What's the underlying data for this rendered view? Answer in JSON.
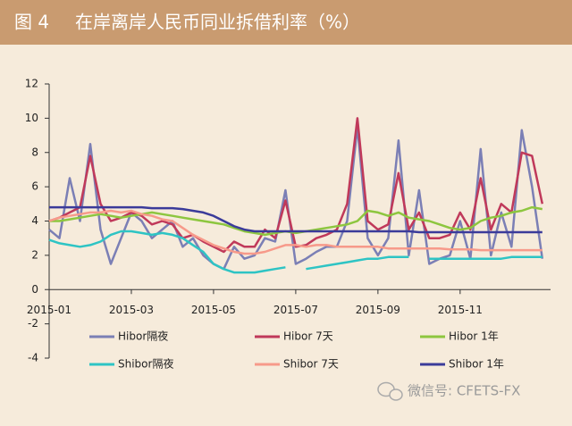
{
  "chart_data": {
    "type": "line",
    "figure_label": "图 4",
    "title": "在岸离岸人民币同业拆借利率（%）",
    "watermark": "微信号: CFETS-FX",
    "x": [
      0,
      0.25,
      0.5,
      0.75,
      1,
      1.25,
      1.5,
      1.75,
      2,
      2.25,
      2.5,
      2.75,
      3,
      3.25,
      3.5,
      3.75,
      4,
      4.25,
      4.5,
      4.75,
      5,
      5.25,
      5.5,
      5.75,
      6,
      6.25,
      6.5,
      6.75,
      7,
      7.25,
      7.5,
      7.75,
      8,
      8.25,
      8.5,
      8.75,
      9,
      9.25,
      9.5,
      9.75,
      10,
      10.25,
      10.5,
      10.75,
      11,
      11.25,
      11.5,
      11.75,
      12
    ],
    "xlim": [
      0,
      12.2
    ],
    "xticks": [
      {
        "value": 0,
        "label": "2015-01"
      },
      {
        "value": 2,
        "label": "2015-03"
      },
      {
        "value": 4,
        "label": "2015-05"
      },
      {
        "value": 6,
        "label": "2015-07"
      },
      {
        "value": 8,
        "label": "2015-09"
      },
      {
        "value": 10,
        "label": "2015-11"
      }
    ],
    "ylim": [
      -4,
      12
    ],
    "yticks": [
      -4,
      -2,
      0,
      2,
      4,
      6,
      8,
      10,
      12
    ],
    "legend": "bottom",
    "series": [
      {
        "name": "Hibor隔夜",
        "color": "#7b7fb5",
        "values": [
          3.5,
          3.0,
          6.5,
          4.0,
          8.5,
          3.5,
          1.5,
          3.0,
          4.5,
          4.0,
          3.0,
          3.5,
          4.0,
          2.5,
          3.0,
          2.0,
          1.5,
          1.2,
          2.5,
          1.8,
          2.0,
          3.0,
          2.8,
          5.8,
          1.5,
          1.8,
          2.2,
          2.5,
          2.5,
          4.0,
          9.5,
          3.0,
          2.0,
          3.0,
          8.7,
          2.0,
          5.8,
          1.5,
          1.8,
          2.0,
          4.0,
          1.8,
          8.2,
          2.0,
          4.5,
          2.5,
          9.3,
          6.0,
          1.8
        ]
      },
      {
        "name": "Hibor 7天",
        "color": "#c0395a",
        "values": [
          4.0,
          4.2,
          4.5,
          4.8,
          7.8,
          5.0,
          4.0,
          4.2,
          4.5,
          4.3,
          3.8,
          4.0,
          3.8,
          3.0,
          3.2,
          2.8,
          2.5,
          2.2,
          2.8,
          2.5,
          2.5,
          3.5,
          3.0,
          5.2,
          2.5,
          2.6,
          3.0,
          3.2,
          3.5,
          5.0,
          10.0,
          4.0,
          3.5,
          3.8,
          6.8,
          3.5,
          4.5,
          3.0,
          3.0,
          3.2,
          4.5,
          3.5,
          6.5,
          3.5,
          5.0,
          4.5,
          8.0,
          7.8,
          5.0
        ]
      },
      {
        "name": "Hibor 1年",
        "color": "#8dc63f",
        "values": [
          4.0,
          4.0,
          4.1,
          4.2,
          4.3,
          4.4,
          4.3,
          4.2,
          4.3,
          4.4,
          4.5,
          4.4,
          4.3,
          4.2,
          4.1,
          4.0,
          3.9,
          3.8,
          3.6,
          3.4,
          3.3,
          3.2,
          3.3,
          3.4,
          3.3,
          3.4,
          3.5,
          3.6,
          3.7,
          3.8,
          4.0,
          4.6,
          4.5,
          4.3,
          4.5,
          4.2,
          4.1,
          4.0,
          3.8,
          3.6,
          3.5,
          3.6,
          4.0,
          4.2,
          4.3,
          4.5,
          4.6,
          4.8,
          4.7
        ]
      },
      {
        "name": "Shibor隔夜",
        "color": "#2ec4c4",
        "values": [
          2.9,
          2.7,
          2.6,
          2.5,
          2.6,
          2.8,
          3.2,
          3.4,
          3.4,
          3.3,
          3.2,
          3.3,
          3.2,
          3.0,
          2.6,
          2.2,
          1.5,
          1.2,
          1.0,
          1.0,
          1.0,
          1.1,
          1.2,
          1.3,
          null,
          1.2,
          1.3,
          1.4,
          1.5,
          1.6,
          1.7,
          1.8,
          1.8,
          1.9,
          1.9,
          1.9,
          null,
          1.8,
          1.8,
          1.8,
          1.8,
          1.8,
          1.8,
          1.8,
          1.8,
          1.9,
          1.9,
          1.9,
          1.9
        ]
      },
      {
        "name": "Shibor 7天",
        "color": "#f79a8a",
        "values": [
          4.0,
          4.2,
          4.3,
          4.4,
          4.5,
          4.5,
          4.6,
          4.5,
          4.6,
          4.4,
          4.3,
          4.1,
          4.0,
          3.6,
          3.2,
          2.9,
          2.6,
          2.4,
          2.2,
          2.1,
          2.1,
          2.2,
          2.4,
          2.6,
          2.6,
          2.5,
          2.6,
          2.6,
          2.5,
          2.5,
          2.5,
          2.5,
          2.5,
          2.4,
          2.4,
          2.4,
          2.4,
          2.4,
          2.4,
          2.35,
          2.35,
          2.35,
          2.3,
          2.3,
          2.3,
          2.3,
          2.3,
          2.3,
          2.3
        ]
      },
      {
        "name": "Shibor 1年",
        "color": "#3b3b9a",
        "values": [
          4.8,
          4.8,
          4.8,
          4.8,
          4.8,
          4.8,
          4.8,
          4.8,
          4.8,
          4.8,
          4.75,
          4.75,
          4.75,
          4.7,
          4.6,
          4.5,
          4.3,
          4.0,
          3.7,
          3.5,
          3.4,
          3.4,
          3.4,
          3.4,
          3.4,
          3.4,
          3.4,
          3.4,
          3.4,
          3.4,
          3.4,
          3.4,
          3.4,
          3.4,
          3.4,
          3.4,
          3.35,
          3.35,
          3.35,
          3.35,
          3.35,
          3.35,
          3.35,
          3.35,
          3.35,
          3.35,
          3.35,
          3.35,
          3.35
        ]
      }
    ]
  }
}
